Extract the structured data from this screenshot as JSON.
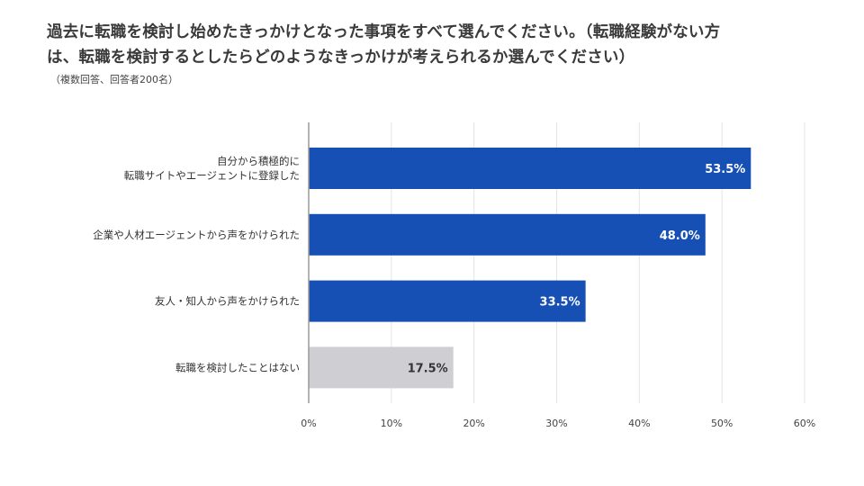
{
  "title_line1": "過去に転職を検討し始めたきっかけとなった事項をすべて選んでください。（転職経験がない方",
  "title_line2": "は、転職を検討するとしたらどのようなきっかけが考えられるか選んでください）",
  "subtitle": "（複数回答、回答者200名）",
  "colors": {
    "primary": "#1650b4",
    "secondary": "#cfcfd3",
    "grid": "#e4e4e4",
    "axis": "#9a9a9a"
  },
  "chart_data": {
    "type": "bar",
    "orientation": "horizontal",
    "categories": [
      [
        "自分から積極的に",
        "転職サイトやエージェントに登録した"
      ],
      [
        "企業や人材エージェントから声をかけられた"
      ],
      [
        "友人・知人から声をかけられた"
      ],
      [
        "転職を検討したことはない"
      ]
    ],
    "values": [
      53.5,
      48.0,
      33.5,
      17.5
    ],
    "value_labels": [
      "53.5%",
      "48.0%",
      "33.5%",
      "17.5%"
    ],
    "bar_colors": [
      "#1650b4",
      "#1650b4",
      "#1650b4",
      "#cfcfd3"
    ],
    "value_label_colors": [
      "#ffffff",
      "#ffffff",
      "#ffffff",
      "#333333"
    ],
    "xlim": [
      0,
      60
    ],
    "ticks": [
      0,
      10,
      20,
      30,
      40,
      50,
      60
    ],
    "tick_labels": [
      "0%",
      "10%",
      "20%",
      "30%",
      "40%",
      "50%",
      "60%"
    ],
    "xlabel": "",
    "ylabel": ""
  }
}
